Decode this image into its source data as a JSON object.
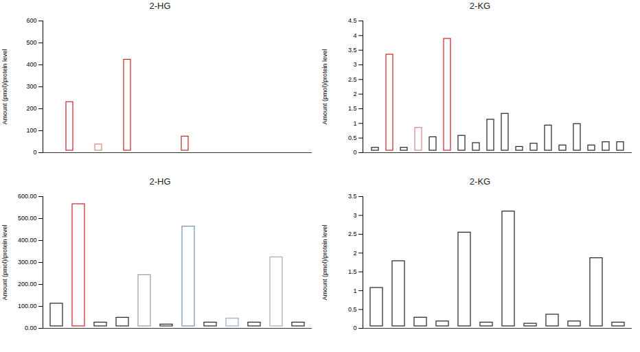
{
  "chart_data": [
    {
      "type": "bar",
      "title": "2-HG",
      "y_label": "Amount (pmol)/protein level",
      "categories": [
        null,
        null,
        null,
        null,
        null,
        null,
        null,
        null,
        null,
        null,
        null,
        null,
        null,
        null,
        null,
        null,
        null,
        null
      ],
      "values": [
        5,
        240,
        3,
        47,
        3,
        433,
        3,
        3,
        5,
        83,
        3,
        3,
        3,
        3,
        3,
        3,
        3,
        10
      ],
      "colors": [
        "#222222",
        "#cc2222",
        "#222222",
        "#e08080",
        "#222222",
        "#cc2222",
        "#222222",
        "#222222",
        "#222222",
        "#b03020",
        "#222222",
        "#222222",
        "#222222",
        "#222222",
        "#222222",
        "#222222",
        "#222222",
        "#cc2222"
      ],
      "ylim": [
        0,
        600
      ],
      "yticks": [
        0,
        100,
        200,
        300,
        400,
        500,
        600
      ],
      "grid": false
    },
    {
      "type": "bar",
      "title": "2-KG",
      "y_label": "Amount (pmol)/protein level",
      "categories": [
        null,
        null,
        null,
        null,
        null,
        null,
        null,
        null,
        null,
        null,
        null,
        null,
        null,
        null,
        null,
        null,
        null,
        null
      ],
      "values": [
        0.24,
        3.42,
        0.24,
        0.92,
        0.6,
        3.96,
        0.65,
        0.4,
        1.2,
        1.4,
        0.27,
        0.38,
        1.0,
        0.32,
        1.05,
        0.32,
        0.43,
        0.43
      ],
      "colors": [
        "#222222",
        "#cc2222",
        "#222222",
        "#e08080",
        "#222222",
        "#cc2222",
        "#222222",
        "#222222",
        "#222222",
        "#222222",
        "#222222",
        "#222222",
        "#222222",
        "#222222",
        "#222222",
        "#222222",
        "#222222",
        "#222222"
      ],
      "ylim": [
        0,
        4.5
      ],
      "yticks": [
        0,
        0.5,
        1,
        1.5,
        2,
        2.5,
        3,
        3.5,
        4,
        4.5
      ],
      "grid": false
    },
    {
      "type": "bar",
      "title": "2-HG",
      "y_label": "Amount (pmol)/protein level",
      "categories": [
        null,
        null,
        null,
        null,
        null,
        null,
        null,
        null,
        null,
        null,
        null,
        null
      ],
      "values": [
        122,
        575,
        36,
        58,
        252,
        27,
        473,
        36,
        54,
        36,
        333,
        36
      ],
      "colors": [
        "#222222",
        "#cc2222",
        "#222222",
        "#222222",
        "#999999",
        "#222222",
        "#6f8faf",
        "#222222",
        "#8fb0d0",
        "#222222",
        "#aaaaaa",
        "#222222"
      ],
      "ylim": [
        0,
        600
      ],
      "yticks": [
        {
          "value": 0,
          "label": "0.00"
        },
        {
          "value": 100,
          "label": "100.00"
        },
        {
          "value": 200,
          "label": "200.00"
        },
        {
          "value": 300,
          "label": "300.00"
        },
        {
          "value": 400,
          "label": "400.00"
        },
        {
          "value": 500,
          "label": "500.00"
        },
        {
          "value": 600,
          "label": "600.00"
        }
      ],
      "grid": false
    },
    {
      "type": "bar",
      "title": "2-KG",
      "y_label": "Amount (pmol)/protein level",
      "categories": [
        null,
        null,
        null,
        null,
        null,
        null,
        null,
        null,
        null,
        null,
        null,
        null
      ],
      "values": [
        1.13,
        1.84,
        0.34,
        0.24,
        2.6,
        0.21,
        3.16,
        0.18,
        0.42,
        0.24,
        1.92,
        0.21
      ],
      "colors": [
        "#222222",
        "#222222",
        "#222222",
        "#222222",
        "#222222",
        "#222222",
        "#222222",
        "#222222",
        "#222222",
        "#222222",
        "#222222",
        "#222222"
      ],
      "ylim": [
        0,
        3.5
      ],
      "yticks": [
        0,
        0.5,
        1,
        1.5,
        2,
        2.5,
        3,
        3.5
      ],
      "grid": false
    }
  ]
}
